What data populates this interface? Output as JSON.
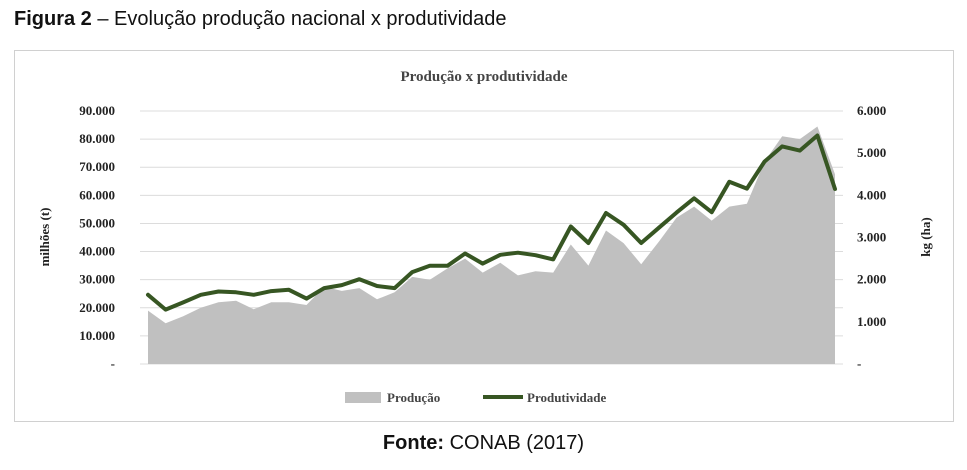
{
  "caption": {
    "label": "Figura 2",
    "text": " – Evolução produção nacional x produtividade"
  },
  "source": {
    "label": "Fonte:",
    "text": " CONAB (2017)"
  },
  "chart_data": {
    "type": "area",
    "title": "Produção x produtividade",
    "y_left": {
      "label": "milhões (t)",
      "lim": [
        0,
        90000
      ],
      "ticks": [
        "-",
        "10.000",
        "20.000",
        "30.000",
        "40.000",
        "50.000",
        "60.000",
        "70.000",
        "80.000",
        "90.000"
      ]
    },
    "y_right": {
      "label": "kg (ha)",
      "lim": [
        0,
        6000
      ],
      "ticks": [
        "-",
        "1.000",
        "2.000",
        "3.000",
        "4.000",
        "5.000",
        "6.000"
      ]
    },
    "legend_position": "bottom-center",
    "colors": {
      "production": "#c0c0c0",
      "productivity": "#375623"
    },
    "series": [
      {
        "name": "Produção",
        "type": "area",
        "axis": "left",
        "values": [
          19000,
          14500,
          17000,
          20000,
          22000,
          22500,
          19500,
          22000,
          22000,
          21000,
          27500,
          26000,
          27000,
          23000,
          25500,
          31000,
          30000,
          34000,
          37500,
          32500,
          36000,
          31500,
          33000,
          32500,
          42500,
          35000,
          47500,
          43000,
          35500,
          43500,
          52000,
          56000,
          51000,
          56000,
          57000,
          72000,
          81000,
          80000,
          84500,
          67500
        ]
      },
      {
        "name": "Produtividade",
        "type": "line",
        "axis": "right",
        "values": [
          1640,
          1290,
          1460,
          1640,
          1720,
          1700,
          1640,
          1730,
          1760,
          1550,
          1800,
          1870,
          2010,
          1850,
          1800,
          2180,
          2330,
          2330,
          2620,
          2380,
          2590,
          2640,
          2580,
          2480,
          3260,
          2870,
          3580,
          3300,
          2870,
          3230,
          3590,
          3930,
          3600,
          4320,
          4160,
          4800,
          5160,
          5060,
          5420,
          4150
        ]
      }
    ]
  }
}
